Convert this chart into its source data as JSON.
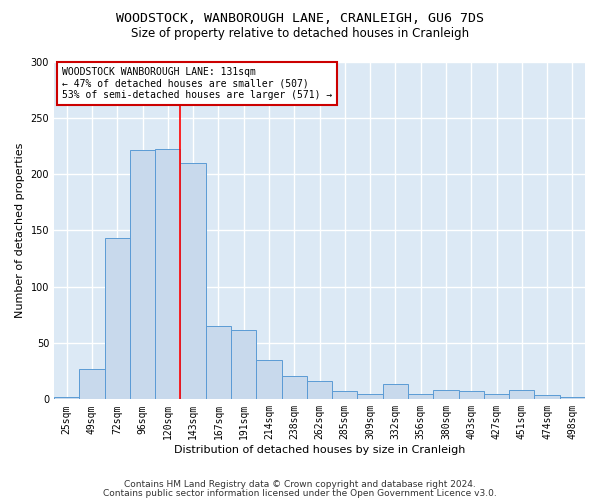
{
  "title1": "WOODSTOCK, WANBOROUGH LANE, CRANLEIGH, GU6 7DS",
  "title2": "Size of property relative to detached houses in Cranleigh",
  "xlabel": "Distribution of detached houses by size in Cranleigh",
  "ylabel": "Number of detached properties",
  "bar_color": "#c8d9ec",
  "bar_edge_color": "#5b9bd5",
  "bar_width": 1.0,
  "categories": [
    "25sqm",
    "49sqm",
    "72sqm",
    "96sqm",
    "120sqm",
    "143sqm",
    "167sqm",
    "191sqm",
    "214sqm",
    "238sqm",
    "262sqm",
    "285sqm",
    "309sqm",
    "332sqm",
    "356sqm",
    "380sqm",
    "403sqm",
    "427sqm",
    "451sqm",
    "474sqm",
    "498sqm"
  ],
  "values": [
    2,
    27,
    143,
    221,
    222,
    210,
    65,
    62,
    35,
    21,
    16,
    7,
    5,
    14,
    5,
    8,
    7,
    5,
    8,
    4,
    2
  ],
  "ylim": [
    0,
    300
  ],
  "yticks": [
    0,
    50,
    100,
    150,
    200,
    250,
    300
  ],
  "red_line_index": 4.5,
  "annotation_text": "WOODSTOCK WANBOROUGH LANE: 131sqm\n← 47% of detached houses are smaller (507)\n53% of semi-detached houses are larger (571) →",
  "annotation_box_color": "#ffffff",
  "annotation_box_edge_color": "#cc0000",
  "footer1": "Contains HM Land Registry data © Crown copyright and database right 2024.",
  "footer2": "Contains public sector information licensed under the Open Government Licence v3.0.",
  "fig_bg_color": "#ffffff",
  "plot_bg_color": "#dce9f5",
  "grid_color": "#ffffff",
  "title_fontsize": 9.5,
  "subtitle_fontsize": 8.5,
  "tick_fontsize": 7,
  "axis_label_fontsize": 8,
  "footer_fontsize": 6.5,
  "annotation_fontsize": 7
}
